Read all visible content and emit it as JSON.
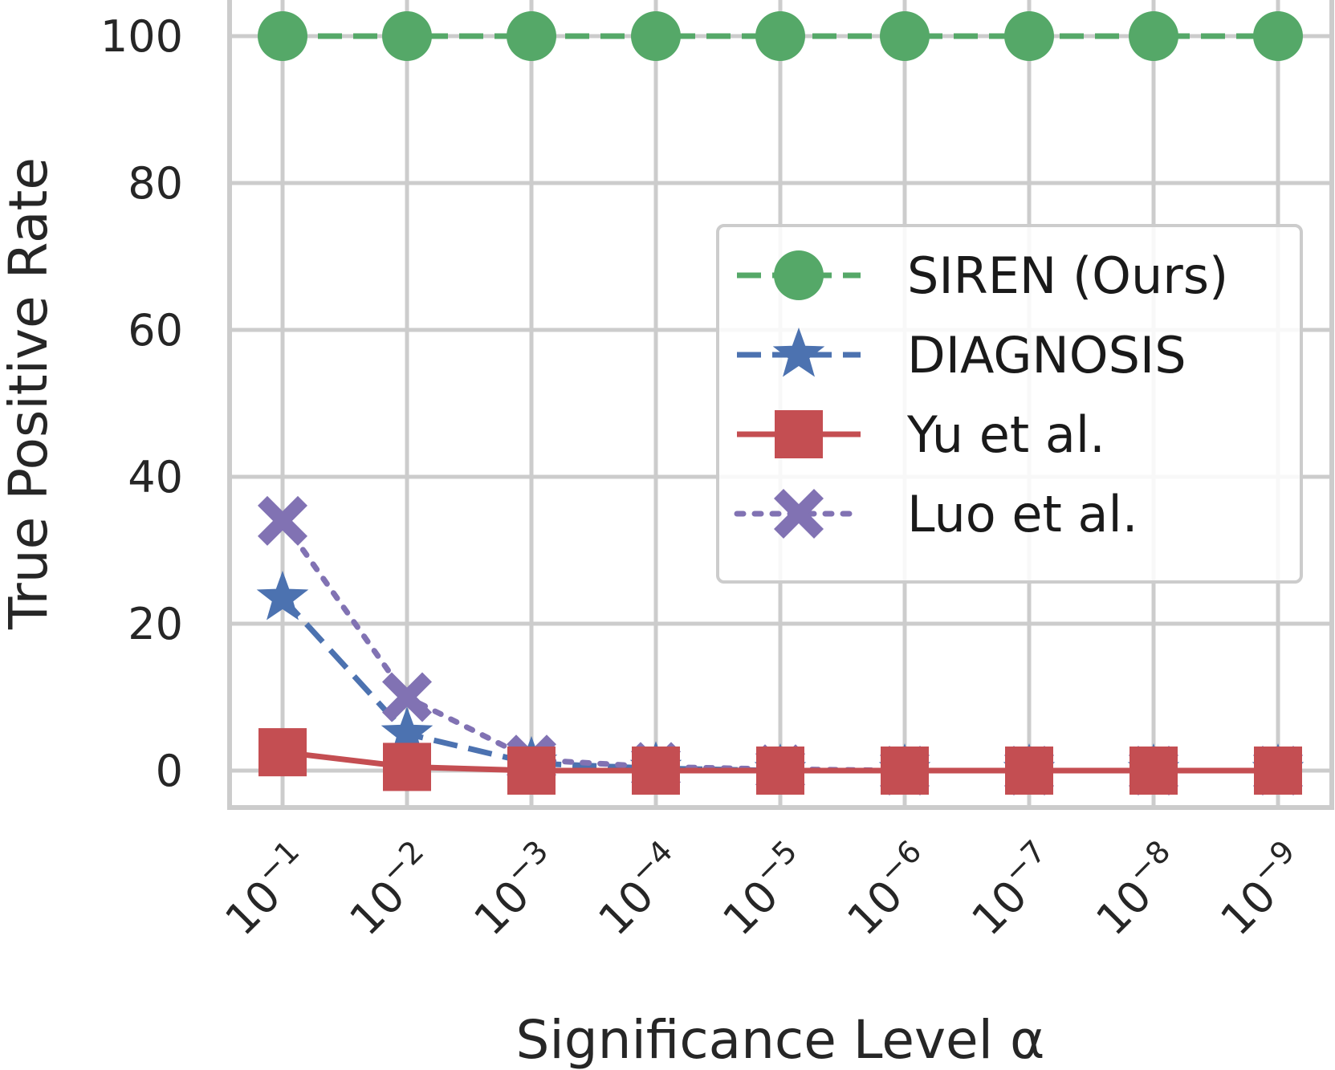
{
  "chart_data": {
    "type": "line",
    "title": "",
    "xlabel": "Significance Level α",
    "ylabel": "True Positive Rate",
    "x_tick_labels": [
      {
        "base": "10",
        "exp": "−1"
      },
      {
        "base": "10",
        "exp": "−2"
      },
      {
        "base": "10",
        "exp": "−3"
      },
      {
        "base": "10",
        "exp": "−4"
      },
      {
        "base": "10",
        "exp": "−5"
      },
      {
        "base": "10",
        "exp": "−6"
      },
      {
        "base": "10",
        "exp": "−7"
      },
      {
        "base": "10",
        "exp": "−8"
      },
      {
        "base": "10",
        "exp": "−9"
      }
    ],
    "y_ticks": [
      0,
      20,
      40,
      60,
      80,
      100
    ],
    "y_tick_labels": [
      "0",
      "20",
      "40",
      "60",
      "80",
      "100"
    ],
    "ylim": [
      -5,
      105
    ],
    "grid": true,
    "legend_position": "center-right",
    "series": [
      {
        "name": "SIREN (Ours)",
        "color": "#55a868",
        "marker": "circle",
        "line_style": "dashed",
        "values": [
          100,
          100,
          100,
          100,
          100,
          100,
          100,
          100,
          100
        ]
      },
      {
        "name": "DIAGNOSIS",
        "color": "#4c72b0",
        "marker": "star",
        "line_style": "dashed",
        "values": [
          23.5,
          5,
          1,
          0.3,
          0,
          0,
          0,
          0,
          0
        ]
      },
      {
        "name": "Yu et al.",
        "color": "#c44e52",
        "marker": "square",
        "line_style": "solid",
        "values": [
          2.5,
          0.5,
          0,
          0,
          0,
          0,
          0,
          0,
          0
        ]
      },
      {
        "name": "Luo et al.",
        "color": "#8172b3",
        "marker": "x-filled",
        "line_style": "dotted",
        "values": [
          34,
          10,
          1.5,
          0.5,
          0.2,
          0,
          0,
          0,
          0
        ]
      }
    ]
  }
}
